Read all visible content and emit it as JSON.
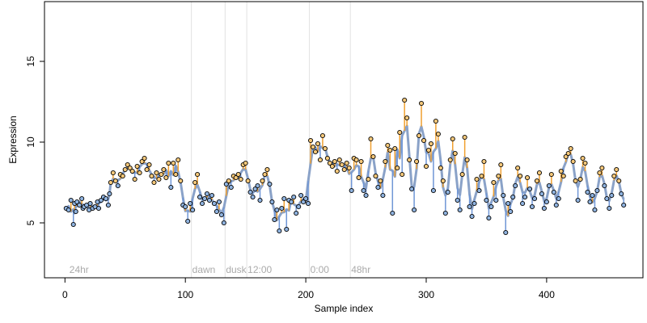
{
  "chart_data": {
    "type": "scatter",
    "title": "",
    "xlabel": "Sample index",
    "ylabel": "Expression",
    "xlim": [
      -17,
      480
    ],
    "ylim": [
      1.6,
      18.7
    ],
    "xticks": [
      0,
      100,
      200,
      300,
      400
    ],
    "yticks": [
      5,
      10,
      15
    ],
    "grid": false,
    "legend": "none",
    "annotations": [
      {
        "label": "24hr",
        "x": 3
      },
      {
        "label": "dawn",
        "x": 105
      },
      {
        "label": "dusk",
        "x": 133
      },
      {
        "label": "12:00",
        "x": 151
      },
      {
        "label": "0:00",
        "x": 203
      },
      {
        "label": "48hr",
        "x": 237
      }
    ],
    "colors": {
      "point_fill_low": "#f5c87a",
      "point_fill_high": "#8fb3e0",
      "point_stroke": "#000000",
      "fitted_line": "#8aa2c8",
      "residual_up": "#f0a030",
      "residual_down": "#6f96d6",
      "vline": "#e2e2e2",
      "annotation": "#aaaaaa"
    },
    "series": [
      {
        "points": [
          [
            1,
            5.9
          ],
          [
            3,
            5.8
          ],
          [
            5,
            6.4
          ],
          [
            7,
            4.9
          ],
          [
            8,
            6.2
          ],
          [
            9,
            5.7
          ],
          [
            10,
            6.3
          ],
          [
            12,
            6.1
          ],
          [
            14,
            6.5
          ],
          [
            15,
            5.9
          ],
          [
            16,
            6.0
          ],
          [
            18,
            6.1
          ],
          [
            20,
            5.8
          ],
          [
            21,
            6.2
          ],
          [
            23,
            5.9
          ],
          [
            25,
            6.0
          ],
          [
            27,
            6.3
          ],
          [
            28,
            5.9
          ],
          [
            30,
            6.4
          ],
          [
            32,
            6.6
          ],
          [
            34,
            6.5
          ],
          [
            36,
            6.1
          ],
          [
            37,
            6.8
          ],
          [
            38,
            7.5
          ],
          [
            40,
            8.1
          ],
          [
            42,
            7.6
          ],
          [
            44,
            7.3
          ],
          [
            46,
            8.0
          ],
          [
            48,
            7.9
          ],
          [
            50,
            8.3
          ],
          [
            52,
            8.6
          ],
          [
            54,
            8.4
          ],
          [
            56,
            8.2
          ],
          [
            58,
            7.7
          ],
          [
            60,
            8.5
          ],
          [
            62,
            8.1
          ],
          [
            64,
            8.8
          ],
          [
            66,
            9.0
          ],
          [
            68,
            8.3
          ],
          [
            70,
            8.6
          ],
          [
            72,
            7.9
          ],
          [
            74,
            7.5
          ],
          [
            76,
            8.1
          ],
          [
            78,
            7.7
          ],
          [
            80,
            8.0
          ],
          [
            82,
            8.3
          ],
          [
            84,
            7.8
          ],
          [
            86,
            8.7
          ],
          [
            88,
            7.2
          ],
          [
            90,
            8.7
          ],
          [
            92,
            8.0
          ],
          [
            94,
            8.9
          ],
          [
            96,
            7.6
          ],
          [
            98,
            6.1
          ],
          [
            100,
            6.0
          ],
          [
            102,
            5.1
          ],
          [
            104,
            6.2
          ],
          [
            106,
            5.8
          ],
          [
            108,
            7.5
          ],
          [
            110,
            8.0
          ],
          [
            112,
            6.6
          ],
          [
            114,
            6.2
          ],
          [
            116,
            6.5
          ],
          [
            118,
            6.8
          ],
          [
            120,
            6.4
          ],
          [
            122,
            6.7
          ],
          [
            124,
            6.2
          ],
          [
            126,
            5.7
          ],
          [
            128,
            6.3
          ],
          [
            130,
            5.5
          ],
          [
            132,
            5.0
          ],
          [
            134,
            7.4
          ],
          [
            136,
            7.6
          ],
          [
            138,
            7.2
          ],
          [
            140,
            7.9
          ],
          [
            142,
            7.8
          ],
          [
            144,
            8.0
          ],
          [
            146,
            7.7
          ],
          [
            148,
            8.6
          ],
          [
            150,
            8.7
          ],
          [
            152,
            7.6
          ],
          [
            154,
            6.9
          ],
          [
            156,
            6.6
          ],
          [
            158,
            7.1
          ],
          [
            160,
            7.3
          ],
          [
            162,
            6.4
          ],
          [
            164,
            7.6
          ],
          [
            166,
            8.0
          ],
          [
            168,
            8.3
          ],
          [
            170,
            7.4
          ],
          [
            172,
            6.3
          ],
          [
            174,
            5.2
          ],
          [
            176,
            5.8
          ],
          [
            178,
            4.5
          ],
          [
            180,
            5.9
          ],
          [
            182,
            6.5
          ],
          [
            184,
            4.6
          ],
          [
            186,
            6.4
          ],
          [
            188,
            6.3
          ],
          [
            190,
            6.6
          ],
          [
            192,
            5.6
          ],
          [
            194,
            6.0
          ],
          [
            196,
            6.7
          ],
          [
            198,
            6.3
          ],
          [
            200,
            6.5
          ],
          [
            202,
            6.2
          ],
          [
            204,
            10.1
          ],
          [
            206,
            9.7
          ],
          [
            208,
            9.4
          ],
          [
            210,
            9.9
          ],
          [
            212,
            8.9
          ],
          [
            214,
            10.4
          ],
          [
            216,
            9.6
          ],
          [
            218,
            9.0
          ],
          [
            220,
            8.7
          ],
          [
            222,
            8.5
          ],
          [
            224,
            8.8
          ],
          [
            226,
            8.2
          ],
          [
            228,
            8.9
          ],
          [
            230,
            8.6
          ],
          [
            232,
            8.3
          ],
          [
            234,
            8.7
          ],
          [
            236,
            8.4
          ],
          [
            238,
            7.0
          ],
          [
            240,
            9.0
          ],
          [
            242,
            8.9
          ],
          [
            244,
            7.8
          ],
          [
            246,
            8.8
          ],
          [
            248,
            7.0
          ],
          [
            250,
            6.7
          ],
          [
            252,
            7.7
          ],
          [
            254,
            10.2
          ],
          [
            256,
            9.1
          ],
          [
            258,
            7.9
          ],
          [
            260,
            7.2
          ],
          [
            262,
            7.6
          ],
          [
            264,
            6.7
          ],
          [
            266,
            8.8
          ],
          [
            268,
            9.8
          ],
          [
            270,
            9.5
          ],
          [
            272,
            5.6
          ],
          [
            274,
            9.6
          ],
          [
            276,
            8.4
          ],
          [
            278,
            10.6
          ],
          [
            280,
            8.0
          ],
          [
            282,
            12.6
          ],
          [
            284,
            11.5
          ],
          [
            286,
            8.9
          ],
          [
            288,
            7.1
          ],
          [
            290,
            5.8
          ],
          [
            292,
            8.8
          ],
          [
            294,
            10.4
          ],
          [
            296,
            12.4
          ],
          [
            298,
            10.1
          ],
          [
            300,
            8.5
          ],
          [
            302,
            9.5
          ],
          [
            304,
            9.9
          ],
          [
            306,
            7.0
          ],
          [
            308,
            11.3
          ],
          [
            310,
            10.5
          ],
          [
            312,
            8.4
          ],
          [
            314,
            7.6
          ],
          [
            316,
            5.6
          ],
          [
            318,
            6.9
          ],
          [
            320,
            8.9
          ],
          [
            322,
            10.2
          ],
          [
            324,
            9.3
          ],
          [
            326,
            6.4
          ],
          [
            328,
            5.8
          ],
          [
            330,
            8.0
          ],
          [
            332,
            10.3
          ],
          [
            334,
            8.9
          ],
          [
            336,
            6.0
          ],
          [
            338,
            5.4
          ],
          [
            340,
            6.2
          ],
          [
            342,
            7.7
          ],
          [
            344,
            7.0
          ],
          [
            346,
            7.9
          ],
          [
            348,
            8.8
          ],
          [
            350,
            6.4
          ],
          [
            352,
            5.3
          ],
          [
            354,
            6.0
          ],
          [
            356,
            7.5
          ],
          [
            358,
            6.4
          ],
          [
            360,
            7.9
          ],
          [
            362,
            8.6
          ],
          [
            364,
            6.7
          ],
          [
            366,
            4.4
          ],
          [
            368,
            6.2
          ],
          [
            370,
            5.7
          ],
          [
            372,
            6.6
          ],
          [
            374,
            7.3
          ],
          [
            376,
            8.4
          ],
          [
            378,
            7.9
          ],
          [
            380,
            6.2
          ],
          [
            382,
            6.6
          ],
          [
            384,
            7.8
          ],
          [
            386,
            7.1
          ],
          [
            388,
            6.0
          ],
          [
            390,
            6.5
          ],
          [
            392,
            7.6
          ],
          [
            394,
            8.1
          ],
          [
            396,
            6.8
          ],
          [
            398,
            5.9
          ],
          [
            400,
            6.3
          ],
          [
            402,
            7.3
          ],
          [
            404,
            8.0
          ],
          [
            406,
            6.9
          ],
          [
            408,
            6.1
          ],
          [
            410,
            6.5
          ],
          [
            412,
            8.2
          ],
          [
            414,
            7.9
          ],
          [
            416,
            9.1
          ],
          [
            418,
            9.3
          ],
          [
            420,
            9.6
          ],
          [
            422,
            8.8
          ],
          [
            424,
            7.6
          ],
          [
            426,
            6.4
          ],
          [
            428,
            7.7
          ],
          [
            430,
            9.0
          ],
          [
            432,
            8.7
          ],
          [
            434,
            6.9
          ],
          [
            436,
            6.3
          ],
          [
            438,
            6.7
          ],
          [
            440,
            5.8
          ],
          [
            442,
            7.0
          ],
          [
            444,
            8.1
          ],
          [
            446,
            8.4
          ],
          [
            448,
            7.3
          ],
          [
            450,
            6.5
          ],
          [
            452,
            5.9
          ],
          [
            454,
            6.7
          ],
          [
            456,
            7.9
          ],
          [
            458,
            8.3
          ],
          [
            460,
            7.6
          ],
          [
            462,
            6.8
          ],
          [
            464,
            6.1
          ]
        ]
      }
    ]
  }
}
